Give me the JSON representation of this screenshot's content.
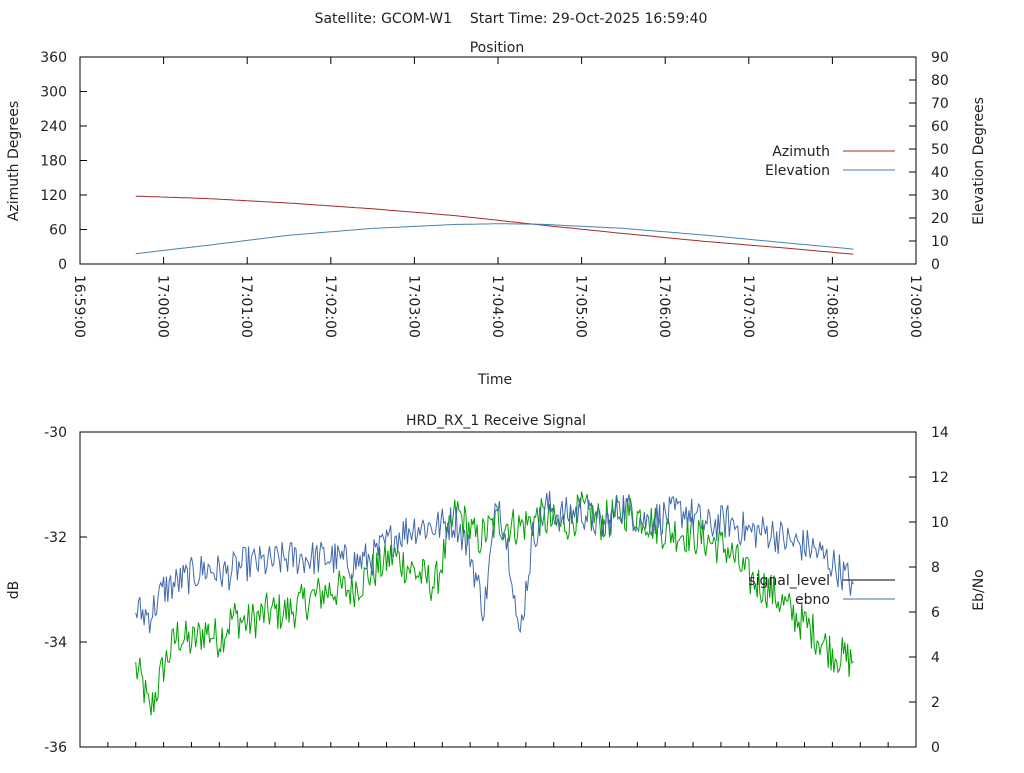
{
  "colors": {
    "azimuth": "#a52a2a",
    "elevation": "#4682b4",
    "signal_level": "#4169aa",
    "ebno": "#00a000",
    "legend_signal_level": "#000000",
    "legend_ebno": "#4169aa"
  },
  "header": "Satellite: GCOM-W1    Start Time: 29-Oct-2025 16:59:40",
  "chart_data": [
    {
      "type": "line",
      "title": "Position",
      "xlabel": "Time",
      "ylabel": "Azimuth Degrees",
      "y2label": "Elevation Degrees",
      "x_ticks": [
        "16:59:00",
        "17:00:00",
        "17:01:00",
        "17:02:00",
        "17:03:00",
        "17:04:00",
        "17:05:00",
        "17:06:00",
        "17:07:00",
        "17:08:00",
        "17:09:00"
      ],
      "xlim": [
        0,
        600
      ],
      "x_unit": "seconds after 16:59:00",
      "ylim": [
        0,
        360
      ],
      "yticks": [
        "0",
        "60",
        "120",
        "180",
        "240",
        "300",
        "360"
      ],
      "y2lim": [
        0,
        90
      ],
      "y2ticks": [
        "0",
        "10",
        "20",
        "30",
        "40",
        "50",
        "60",
        "70",
        "80",
        "90"
      ],
      "legend": [
        "Azimuth",
        "Elevation"
      ],
      "legend_position": "right",
      "series": [
        {
          "name": "Azimuth",
          "axis": "y",
          "x": [
            40,
            90,
            150,
            210,
            270,
            330,
            390,
            450,
            510,
            555
          ],
          "values": [
            118,
            114,
            106,
            96,
            84,
            68,
            53,
            39,
            27,
            17
          ]
        },
        {
          "name": "Elevation",
          "axis": "y2",
          "x": [
            40,
            90,
            150,
            210,
            270,
            300,
            330,
            390,
            450,
            510,
            555
          ],
          "values": [
            4.5,
            8,
            12.5,
            15.5,
            17.2,
            17.5,
            17.3,
            15.5,
            12.5,
            9,
            6.5
          ]
        }
      ]
    },
    {
      "type": "line",
      "title": "HRD_RX_1 Receive Signal",
      "ylabel": "dB",
      "y2label": "Eb/No",
      "xlim": [
        0,
        600
      ],
      "x_tick_count": 31,
      "ylim": [
        -36,
        -30
      ],
      "yticks": [
        "-36",
        "-34",
        "-32",
        "-30"
      ],
      "y2lim": [
        0,
        14
      ],
      "y2ticks": [
        "0",
        "2",
        "4",
        "6",
        "8",
        "10",
        "12",
        "14"
      ],
      "legend": [
        "signal_level",
        "ebno"
      ],
      "legend_position": "right",
      "series": [
        {
          "name": "signal_level",
          "axis": "y",
          "x": [
            40,
            50,
            60,
            75,
            90,
            105,
            120,
            135,
            150,
            165,
            180,
            195,
            210,
            225,
            240,
            255,
            270,
            280,
            290,
            300,
            310,
            315,
            325,
            335,
            345,
            360,
            375,
            390,
            405,
            420,
            435,
            450,
            465,
            480,
            495,
            510,
            525,
            540,
            555
          ],
          "values": [
            -33.4,
            -33.5,
            -33.0,
            -32.8,
            -32.6,
            -32.7,
            -32.5,
            -32.5,
            -32.4,
            -32.4,
            -32.4,
            -32.5,
            -32.4,
            -32.0,
            -31.8,
            -31.8,
            -31.7,
            -32.3,
            -33.4,
            -31.2,
            -32.6,
            -34.0,
            -32.0,
            -31.4,
            -31.6,
            -31.5,
            -31.8,
            -31.4,
            -31.7,
            -31.6,
            -31.5,
            -31.8,
            -31.7,
            -31.9,
            -31.9,
            -32.1,
            -32.2,
            -32.5,
            -32.9
          ]
        },
        {
          "name": "ebno",
          "axis": "y2",
          "x": [
            40,
            45,
            50,
            55,
            60,
            70,
            80,
            90,
            100,
            110,
            120,
            135,
            150,
            165,
            180,
            195,
            210,
            225,
            240,
            255,
            270,
            285,
            300,
            315,
            330,
            345,
            360,
            375,
            390,
            405,
            420,
            435,
            450,
            465,
            480,
            495,
            510,
            525,
            540,
            555
          ],
          "values": [
            3.5,
            2.8,
            1.5,
            2.5,
            3.6,
            5.0,
            4.6,
            5.2,
            4.8,
            5.8,
            5.5,
            6.0,
            6.0,
            6.6,
            7.0,
            7.0,
            7.8,
            8.5,
            7.8,
            7.2,
            10.5,
            9.2,
            10.0,
            9.8,
            10.2,
            9.8,
            10.5,
            10.0,
            10.5,
            10.2,
            9.6,
            9.5,
            9.2,
            8.8,
            7.5,
            7.0,
            6.0,
            5.2,
            4.2,
            3.8
          ]
        }
      ]
    }
  ]
}
